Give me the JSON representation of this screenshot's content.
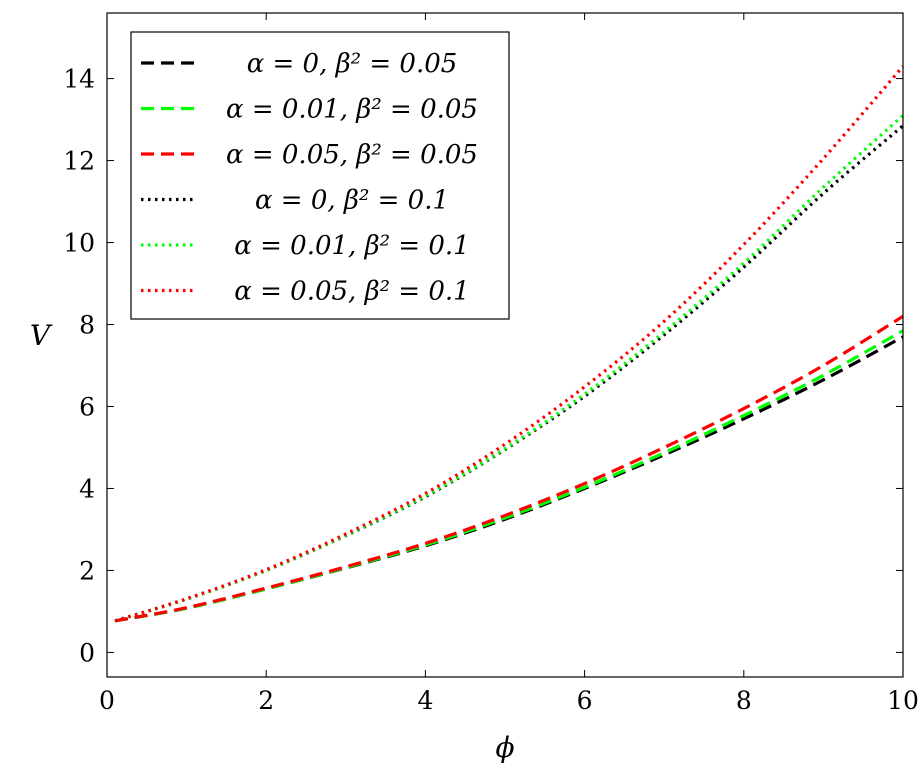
{
  "chart_data": {
    "type": "line",
    "xlabel": "ϕ",
    "ylabel": "V",
    "xlim": [
      0,
      10
    ],
    "ylim": [
      -0.6,
      15.6
    ],
    "xticks": [
      0,
      2,
      4,
      6,
      8,
      10
    ],
    "yticks": [
      0,
      2,
      4,
      6,
      8,
      10,
      12,
      14
    ],
    "x_tick_labels": [
      "0",
      "2",
      "4",
      "6",
      "8",
      "10"
    ],
    "y_tick_labels": [
      "0",
      "2",
      "4",
      "6",
      "8",
      "10",
      "12",
      "14"
    ],
    "grid": false,
    "legend_position": "top-left",
    "x": [
      0.1,
      1,
      2,
      3,
      4,
      5,
      6,
      7,
      8,
      9,
      10
    ],
    "series": [
      {
        "name": "α = 0, β² = 0.05",
        "color": "#000000",
        "dash": "dashed",
        "values": [
          0.77,
          1.08,
          1.55,
          2.06,
          2.6,
          3.25,
          4.0,
          4.82,
          5.7,
          6.65,
          7.7
        ]
      },
      {
        "name": "α = 0.01, β² = 0.05",
        "color": "#00ff00",
        "dash": "dashed",
        "values": [
          0.77,
          1.08,
          1.55,
          2.07,
          2.62,
          3.28,
          4.03,
          4.87,
          5.78,
          6.76,
          7.85
        ]
      },
      {
        "name": "α = 0.05, β² = 0.05",
        "color": "#ff0000",
        "dash": "dashed",
        "values": [
          0.77,
          1.09,
          1.57,
          2.09,
          2.66,
          3.34,
          4.12,
          5.0,
          5.95,
          7.0,
          8.2
        ]
      },
      {
        "name": "α = 0, β² = 0.1",
        "color": "#000000",
        "dash": "dotted",
        "values": [
          0.77,
          1.3,
          2.0,
          2.85,
          3.8,
          4.95,
          6.25,
          7.75,
          9.4,
          11.2,
          12.85
        ]
      },
      {
        "name": "α = 0.01, β² = 0.1",
        "color": "#00ff00",
        "dash": "dotted",
        "values": [
          0.77,
          1.3,
          2.0,
          2.86,
          3.82,
          4.97,
          6.3,
          7.82,
          9.5,
          11.35,
          13.1
        ]
      },
      {
        "name": "α = 0.05, β² = 0.1",
        "color": "#ff0000",
        "dash": "dotted",
        "values": [
          0.77,
          1.31,
          2.02,
          2.89,
          3.88,
          5.08,
          6.48,
          8.08,
          9.95,
          12.05,
          14.3
        ]
      }
    ]
  }
}
